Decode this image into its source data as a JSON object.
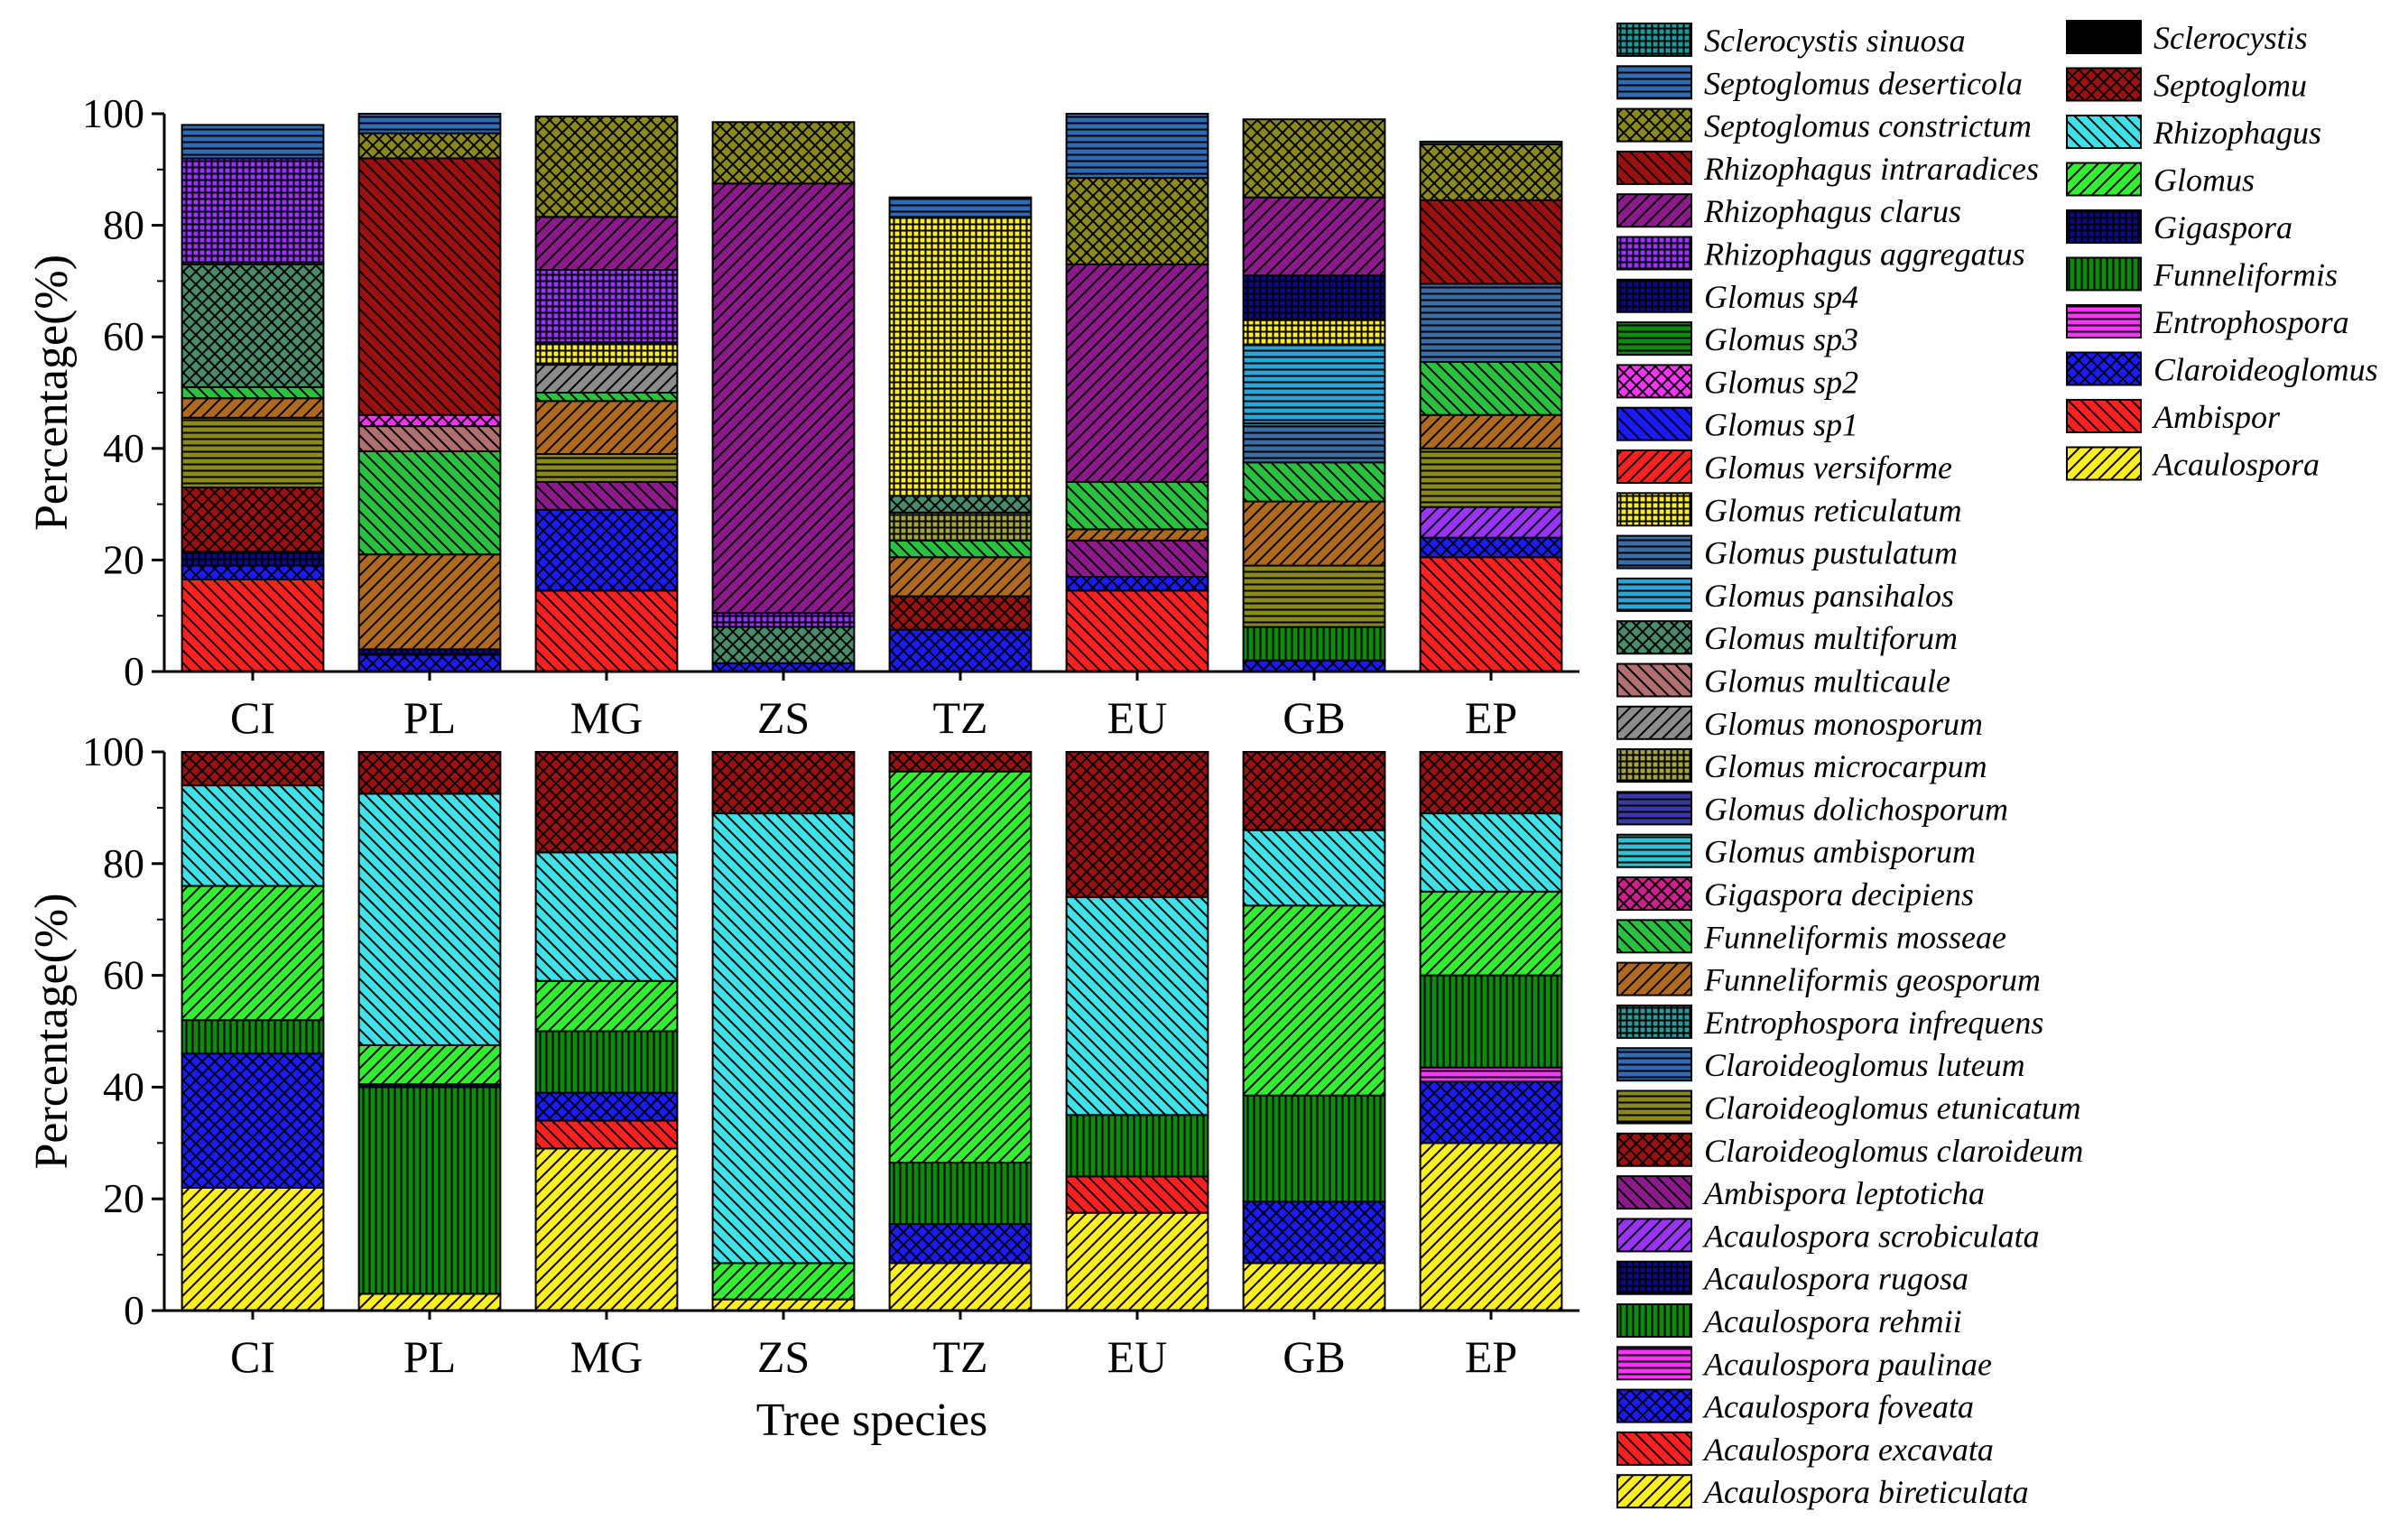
{
  "chart_data": [
    {
      "type": "bar",
      "stacked": true,
      "level": "species",
      "categories": [
        "CI",
        "PL",
        "MG",
        "ZS",
        "TZ",
        "EU",
        "GB",
        "EP"
      ],
      "xlabel": "",
      "ylabel": "Percentage(%)",
      "ylim": [
        0,
        100
      ],
      "yticks": [
        "0",
        "20",
        "40",
        "60",
        "80",
        "100"
      ],
      "series": [
        {
          "name": "Acaulospora excavata",
          "values": [
            16.5,
            0,
            14.5,
            0,
            0,
            14.5,
            0,
            20.5
          ]
        },
        {
          "name": "Acaulospora foveata",
          "values": [
            2.5,
            3,
            14.5,
            1.5,
            7.5,
            2.5,
            2,
            3.5
          ]
        },
        {
          "name": "Acaulospora rugosa",
          "values": [
            2.5,
            1,
            0,
            0,
            0,
            0,
            0,
            0
          ]
        },
        {
          "name": "Acaulospora rehmii",
          "values": [
            0,
            0,
            0,
            0,
            0,
            0,
            6,
            0
          ]
        },
        {
          "name": "Acaulospora scrobiculata",
          "values": [
            0,
            0,
            0,
            0,
            0,
            0,
            0,
            5.5
          ]
        },
        {
          "name": "Ambispora leptoticha",
          "values": [
            0,
            0,
            5,
            0,
            0,
            6.5,
            0,
            0
          ]
        },
        {
          "name": "Claroideoglomus claroideum",
          "values": [
            11.5,
            0,
            0,
            0,
            6,
            0,
            0,
            0
          ]
        },
        {
          "name": "Claroideoglomus etunicatum",
          "values": [
            12.5,
            0,
            5,
            0,
            0,
            0,
            11,
            10.5
          ]
        },
        {
          "name": "Funneliformis geosporum",
          "values": [
            3.5,
            17,
            9.5,
            0,
            7,
            2,
            11.5,
            6
          ]
        },
        {
          "name": "Funneliformis mosseae",
          "values": [
            2,
            18.5,
            1.5,
            0,
            3,
            8.5,
            7,
            9.5
          ]
        },
        {
          "name": "Glomus pustulatum",
          "values": [
            0,
            0,
            0,
            0,
            0,
            0,
            7,
            14
          ]
        },
        {
          "name": "Glomus multicaule",
          "values": [
            0,
            4.5,
            0,
            0,
            0,
            0,
            0,
            0
          ]
        },
        {
          "name": "Glomus monosporum",
          "values": [
            0,
            0,
            5,
            0,
            0,
            0,
            0,
            0
          ]
        },
        {
          "name": "Glomus microcarpum",
          "values": [
            0,
            0,
            0,
            0,
            5,
            0,
            0,
            0
          ]
        },
        {
          "name": "Glomus multiforum",
          "values": [
            22,
            0,
            0,
            6.5,
            3,
            0,
            0,
            0
          ]
        },
        {
          "name": "Glomus pansihalos",
          "values": [
            0,
            0,
            0,
            0,
            0,
            0,
            14,
            0
          ]
        },
        {
          "name": "Glomus reticulatum",
          "values": [
            0,
            0,
            4,
            0,
            50,
            0,
            4.5,
            0
          ]
        },
        {
          "name": "Glomus sp2",
          "values": [
            0,
            2,
            0,
            0,
            0,
            0,
            0,
            0
          ]
        },
        {
          "name": "Glomus sp4",
          "values": [
            0,
            0,
            0,
            0,
            0,
            0,
            8,
            0
          ]
        },
        {
          "name": "Rhizophagus aggregatus",
          "values": [
            19,
            0,
            13,
            2.5,
            0,
            0,
            0,
            0
          ]
        },
        {
          "name": "Rhizophagus clarus",
          "values": [
            0,
            0,
            9.5,
            77,
            0,
            39,
            14,
            0
          ]
        },
        {
          "name": "Rhizophagus intraradices",
          "values": [
            0,
            46,
            0,
            0,
            0,
            0,
            0,
            15
          ]
        },
        {
          "name": "Septoglomus constrictum",
          "values": [
            0,
            4.5,
            18,
            11,
            0,
            15.5,
            14,
            10
          ]
        },
        {
          "name": "Septoglomus deserticola",
          "values": [
            6,
            3.5,
            0,
            0,
            3.5,
            11.5,
            0,
            0.5
          ]
        }
      ]
    },
    {
      "type": "bar",
      "stacked": true,
      "level": "genus",
      "categories": [
        "CI",
        "PL",
        "MG",
        "ZS",
        "TZ",
        "EU",
        "GB",
        "EP"
      ],
      "xlabel": "Tree species",
      "ylabel": "Percentage(%)",
      "ylim": [
        0,
        100
      ],
      "yticks": [
        "0",
        "20",
        "40",
        "60",
        "80",
        "100"
      ],
      "series": [
        {
          "name": "Acaulospora",
          "values": [
            22,
            3,
            29,
            2,
            8.5,
            17.5,
            8.5,
            30
          ]
        },
        {
          "name": "Ambispor",
          "values": [
            0,
            0,
            5,
            0,
            0,
            6.5,
            0,
            0
          ]
        },
        {
          "name": "Claroideoglomus",
          "values": [
            24,
            0,
            5,
            0,
            7,
            0,
            11,
            11
          ]
        },
        {
          "name": "Entrophospora",
          "values": [
            0,
            0,
            0,
            0,
            0,
            0,
            0,
            2.5
          ]
        },
        {
          "name": "Funneliformis",
          "values": [
            6,
            37,
            11,
            0,
            11,
            11,
            19,
            16.5
          ]
        },
        {
          "name": "Gigaspora",
          "values": [
            0,
            0.5,
            0,
            0,
            0,
            0,
            0,
            0
          ]
        },
        {
          "name": "Glomus",
          "values": [
            24,
            7,
            9,
            6.5,
            70,
            0,
            34,
            15
          ]
        },
        {
          "name": "Rhizophagus",
          "values": [
            18,
            45,
            23,
            80.5,
            0,
            39,
            13.5,
            14
          ]
        },
        {
          "name": "Septoglomu",
          "values": [
            6,
            7.5,
            18,
            11,
            3.5,
            26,
            14,
            11
          ]
        }
      ]
    }
  ],
  "legend_species": [
    "Sclerocystis sinuosa",
    "Septoglomus deserticola",
    "Septoglomus constrictum",
    "Rhizophagus intraradices",
    "Rhizophagus clarus",
    "Rhizophagus aggregatus",
    "Glomus sp4",
    "Glomus sp3",
    "Glomus sp2",
    "Glomus sp1",
    "Glomus versiforme",
    "Glomus reticulatum",
    "Glomus pustulatum",
    "Glomus pansihalos",
    "Glomus multiforum",
    "Glomus multicaule",
    "Glomus monosporum",
    "Glomus microcarpum",
    "Glomus dolichosporum",
    "Glomus ambisporum",
    "Gigaspora decipiens",
    "Funneliformis mosseae",
    "Funneliformis geosporum",
    "Entrophospora infrequens",
    "Claroideoglomus luteum",
    "Claroideoglomus etunicatum",
    "Claroideoglomus claroideum",
    "Ambispora leptoticha",
    "Acaulospora scrobiculata",
    "Acaulospora rugosa",
    "Acaulospora rehmii",
    "Acaulospora paulinae",
    "Acaulospora foveata",
    "Acaulospora excavata",
    "Acaulospora bireticulata"
  ],
  "legend_genus": [
    "Sclerocystis",
    "Septoglomu",
    "Rhizophagus",
    "Glomus",
    "Gigaspora",
    "Funneliformis",
    "Entrophospora",
    "Claroideoglomus",
    "Ambispor",
    "Acaulospora"
  ],
  "styles": {
    "Sclerocystis sinuosa": {
      "color": "#1a9c9c",
      "pattern": "grid"
    },
    "Septoglomus deserticola": {
      "color": "#2e6db5",
      "pattern": "hlines"
    },
    "Septoglomus constrictum": {
      "color": "#8a8a1a",
      "pattern": "cross"
    },
    "Rhizophagus intraradices": {
      "color": "#9c1010",
      "pattern": "back"
    },
    "Rhizophagus clarus": {
      "color": "#8c1a8c",
      "pattern": "fwd"
    },
    "Rhizophagus aggregatus": {
      "color": "#9933ff",
      "pattern": "grid"
    },
    "Glomus sp4": {
      "color": "#0a0a8c",
      "pattern": "grid"
    },
    "Glomus sp3": {
      "color": "#0a8c0a",
      "pattern": "hlines"
    },
    "Glomus sp2": {
      "color": "#ff33ff",
      "pattern": "cross"
    },
    "Glomus sp1": {
      "color": "#1a1aff",
      "pattern": "back"
    },
    "Glomus versiforme": {
      "color": "#ff2020",
      "pattern": "fwd"
    },
    "Glomus reticulatum": {
      "color": "#ffee22",
      "pattern": "grid"
    },
    "Glomus pustulatum": {
      "color": "#3a6ea5",
      "pattern": "hlines"
    },
    "Glomus pansihalos": {
      "color": "#2aa5d8",
      "pattern": "hlines"
    },
    "Glomus multiforum": {
      "color": "#4a8c6a",
      "pattern": "cross"
    },
    "Glomus multicaule": {
      "color": "#b07070",
      "pattern": "back"
    },
    "Glomus monosporum": {
      "color": "#8c8c8c",
      "pattern": "fwd"
    },
    "Glomus microcarpum": {
      "color": "#a5a540",
      "pattern": "grid"
    },
    "Glomus dolichosporum": {
      "color": "#3a3aa5",
      "pattern": "hlines"
    },
    "Glomus ambisporum": {
      "color": "#30c0d0",
      "pattern": "hlines"
    },
    "Gigaspora decipiens": {
      "color": "#d02090",
      "pattern": "cross"
    },
    "Funneliformis mosseae": {
      "color": "#2ac040",
      "pattern": "back"
    },
    "Funneliformis geosporum": {
      "color": "#b06a20",
      "pattern": "fwd"
    },
    "Entrophospora infrequens": {
      "color": "#2a9a9a",
      "pattern": "grid"
    },
    "Claroideoglomus luteum": {
      "color": "#2e6db5",
      "pattern": "hlines"
    },
    "Claroideoglomus etunicatum": {
      "color": "#8a8a1a",
      "pattern": "hlines"
    },
    "Claroideoglomus claroideum": {
      "color": "#9c1010",
      "pattern": "cross"
    },
    "Ambispora leptoticha": {
      "color": "#8c1a8c",
      "pattern": "back"
    },
    "Acaulospora scrobiculata": {
      "color": "#9933ff",
      "pattern": "fwd"
    },
    "Acaulospora rugosa": {
      "color": "#0a0a8c",
      "pattern": "grid"
    },
    "Acaulospora rehmii": {
      "color": "#0a8c0a",
      "pattern": "vlines"
    },
    "Acaulospora paulinae": {
      "color": "#ff33ff",
      "pattern": "hlines"
    },
    "Acaulospora foveata": {
      "color": "#1a1aff",
      "pattern": "cross"
    },
    "Acaulospora excavata": {
      "color": "#ff2020",
      "pattern": "back"
    },
    "Acaulospora bireticulata": {
      "color": "#ffee22",
      "pattern": "fwd"
    },
    "Sclerocystis": {
      "color": "#000000",
      "pattern": "none"
    },
    "Septoglomu": {
      "color": "#9c1010",
      "pattern": "cross"
    },
    "Rhizophagus": {
      "color": "#40e0e8",
      "pattern": "back"
    },
    "Glomus": {
      "color": "#33ee33",
      "pattern": "fwd"
    },
    "Gigaspora": {
      "color": "#0a0a8c",
      "pattern": "grid"
    },
    "Funneliformis": {
      "color": "#0a8c0a",
      "pattern": "vlines"
    },
    "Entrophospora": {
      "color": "#ff33ff",
      "pattern": "hlines"
    },
    "Claroideoglomus": {
      "color": "#1a1aff",
      "pattern": "cross"
    },
    "Ambispor": {
      "color": "#ff2020",
      "pattern": "back"
    },
    "Acaulospora": {
      "color": "#ffee22",
      "pattern": "fwd"
    }
  }
}
